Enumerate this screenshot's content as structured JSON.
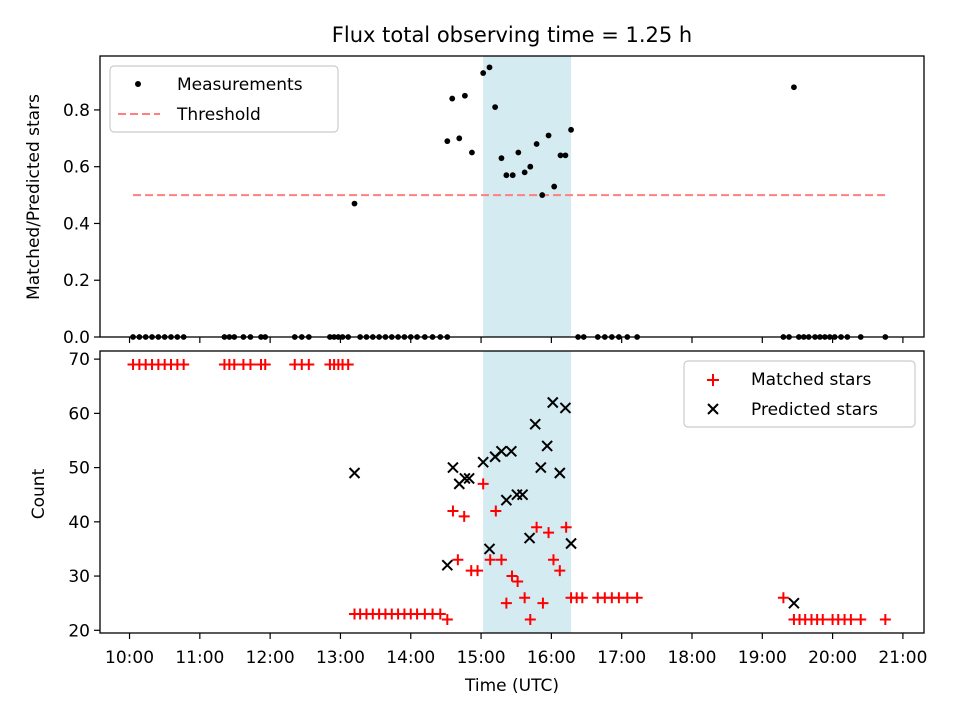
{
  "title": "Flux total observing time = 1.25 h",
  "colors": {
    "measurement": "#000000",
    "threshold": "#ff7f7f",
    "matched": "#ff0000",
    "predicted": "#000000",
    "highlight": "#add8e6"
  },
  "chart_data": [
    {
      "type": "scatter",
      "panel": "top",
      "title": "Flux total observing time = 1.25 h",
      "xlabel": "",
      "ylabel": "Matched/Predicted stars",
      "xlim": [
        9.58,
        21.3
      ],
      "ylim": [
        0.0,
        0.99
      ],
      "yticks": [
        0.0,
        0.2,
        0.4,
        0.6,
        0.8
      ],
      "ytick_labels": [
        "0.0",
        "0.2",
        "0.4",
        "0.6",
        "0.8"
      ],
      "x_unit": "hour (UTC)",
      "highlight_span": [
        15.03,
        16.28
      ],
      "legend": {
        "placement": "upper-left",
        "entries": [
          "Measurements",
          "Threshold"
        ]
      },
      "series": [
        {
          "name": "Measurements",
          "marker": "dot",
          "points": [
            [
              10.05,
              0
            ],
            [
              10.14,
              0
            ],
            [
              10.23,
              0
            ],
            [
              10.32,
              0
            ],
            [
              10.41,
              0
            ],
            [
              10.5,
              0
            ],
            [
              10.59,
              0
            ],
            [
              10.68,
              0
            ],
            [
              10.77,
              0
            ],
            [
              11.35,
              0
            ],
            [
              11.42,
              0
            ],
            [
              11.49,
              0
            ],
            [
              11.62,
              0
            ],
            [
              11.72,
              0
            ],
            [
              11.87,
              0
            ],
            [
              11.93,
              0
            ],
            [
              12.35,
              0
            ],
            [
              12.45,
              0
            ],
            [
              12.55,
              0
            ],
            [
              12.85,
              0
            ],
            [
              12.91,
              0
            ],
            [
              12.97,
              0
            ],
            [
              13.03,
              0
            ],
            [
              13.11,
              0
            ],
            [
              13.2,
              0.47
            ],
            [
              13.28,
              0
            ],
            [
              13.37,
              0
            ],
            [
              13.46,
              0
            ],
            [
              13.55,
              0
            ],
            [
              13.64,
              0
            ],
            [
              13.73,
              0
            ],
            [
              13.82,
              0
            ],
            [
              13.91,
              0
            ],
            [
              14.0,
              0
            ],
            [
              14.09,
              0
            ],
            [
              14.2,
              0
            ],
            [
              14.31,
              0
            ],
            [
              14.42,
              0
            ],
            [
              14.52,
              0
            ],
            [
              14.52,
              0.69
            ],
            [
              14.59,
              0.84
            ],
            [
              14.69,
              0.7
            ],
            [
              14.77,
              0.85
            ],
            [
              14.87,
              0.65
            ],
            [
              15.03,
              0.93
            ],
            [
              15.12,
              0.95
            ],
            [
              15.2,
              0.81
            ],
            [
              15.29,
              0.63
            ],
            [
              15.36,
              0.57
            ],
            [
              15.45,
              0.57
            ],
            [
              15.53,
              0.65
            ],
            [
              15.62,
              0.58
            ],
            [
              15.7,
              0.6
            ],
            [
              15.79,
              0.68
            ],
            [
              15.87,
              0.5
            ],
            [
              15.96,
              0.71
            ],
            [
              16.04,
              0.53
            ],
            [
              16.13,
              0.64
            ],
            [
              16.2,
              0.64
            ],
            [
              16.28,
              0.73
            ],
            [
              16.38,
              0
            ],
            [
              16.46,
              0
            ],
            [
              16.66,
              0
            ],
            [
              16.76,
              0
            ],
            [
              16.86,
              0
            ],
            [
              16.96,
              0
            ],
            [
              17.08,
              0
            ],
            [
              17.22,
              0
            ],
            [
              19.3,
              0
            ],
            [
              19.38,
              0
            ],
            [
              19.45,
              0.88
            ],
            [
              19.52,
              0
            ],
            [
              19.59,
              0
            ],
            [
              19.66,
              0
            ],
            [
              19.75,
              0
            ],
            [
              19.82,
              0
            ],
            [
              19.89,
              0
            ],
            [
              19.96,
              0
            ],
            [
              20.03,
              0
            ],
            [
              20.12,
              0
            ],
            [
              20.21,
              0
            ],
            [
              20.4,
              0
            ],
            [
              20.75,
              0
            ]
          ]
        },
        {
          "name": "Threshold",
          "marker": "dashed-line",
          "x": [
            10.05,
            20.75
          ],
          "y": [
            0.5,
            0.5
          ]
        }
      ]
    },
    {
      "type": "scatter",
      "panel": "bottom",
      "xlabel": "Time (UTC)",
      "ylabel": "Count",
      "xlim": [
        9.58,
        21.3
      ],
      "ylim": [
        19.5,
        71.5
      ],
      "yticks": [
        20,
        30,
        40,
        50,
        60,
        70
      ],
      "ytick_labels": [
        "20",
        "30",
        "40",
        "50",
        "60",
        "70"
      ],
      "xticks": [
        10,
        11,
        12,
        13,
        14,
        15,
        16,
        17,
        18,
        19,
        20,
        21
      ],
      "xtick_labels": [
        "10:00",
        "11:00",
        "12:00",
        "13:00",
        "14:00",
        "15:00",
        "16:00",
        "17:00",
        "18:00",
        "19:00",
        "20:00",
        "21:00"
      ],
      "highlight_span": [
        15.03,
        16.28
      ],
      "legend": {
        "placement": "upper-right",
        "entries": [
          "Matched stars",
          "Predicted stars"
        ]
      },
      "series": [
        {
          "name": "Matched stars",
          "marker": "plus",
          "points": [
            [
              10.05,
              69
            ],
            [
              10.14,
              69
            ],
            [
              10.23,
              69
            ],
            [
              10.32,
              69
            ],
            [
              10.41,
              69
            ],
            [
              10.5,
              69
            ],
            [
              10.59,
              69
            ],
            [
              10.68,
              69
            ],
            [
              10.77,
              69
            ],
            [
              11.35,
              69
            ],
            [
              11.42,
              69
            ],
            [
              11.49,
              69
            ],
            [
              11.62,
              69
            ],
            [
              11.72,
              69
            ],
            [
              11.87,
              69
            ],
            [
              11.93,
              69
            ],
            [
              12.35,
              69
            ],
            [
              12.45,
              69
            ],
            [
              12.55,
              69
            ],
            [
              12.85,
              69
            ],
            [
              12.91,
              69
            ],
            [
              12.97,
              69
            ],
            [
              13.03,
              69
            ],
            [
              13.11,
              69
            ],
            [
              13.2,
              23
            ],
            [
              13.28,
              23
            ],
            [
              13.37,
              23
            ],
            [
              13.46,
              23
            ],
            [
              13.55,
              23
            ],
            [
              13.64,
              23
            ],
            [
              13.73,
              23
            ],
            [
              13.82,
              23
            ],
            [
              13.91,
              23
            ],
            [
              14.0,
              23
            ],
            [
              14.09,
              23
            ],
            [
              14.2,
              23
            ],
            [
              14.31,
              23
            ],
            [
              14.42,
              23
            ],
            [
              14.52,
              22
            ],
            [
              14.6,
              42
            ],
            [
              14.67,
              33
            ],
            [
              14.76,
              41
            ],
            [
              14.86,
              31
            ],
            [
              14.95,
              31
            ],
            [
              15.03,
              47
            ],
            [
              15.13,
              33
            ],
            [
              15.21,
              42
            ],
            [
              15.29,
              33
            ],
            [
              15.36,
              25
            ],
            [
              15.44,
              30
            ],
            [
              15.52,
              29
            ],
            [
              15.62,
              26
            ],
            [
              15.7,
              22
            ],
            [
              15.79,
              39
            ],
            [
              15.88,
              25
            ],
            [
              15.96,
              38
            ],
            [
              16.03,
              33
            ],
            [
              16.12,
              31
            ],
            [
              16.21,
              39
            ],
            [
              16.28,
              26
            ],
            [
              16.36,
              26
            ],
            [
              16.44,
              26
            ],
            [
              16.66,
              26
            ],
            [
              16.76,
              26
            ],
            [
              16.86,
              26
            ],
            [
              16.96,
              26
            ],
            [
              17.08,
              26
            ],
            [
              17.22,
              26
            ],
            [
              19.3,
              26
            ],
            [
              19.45,
              22
            ],
            [
              19.53,
              22
            ],
            [
              19.61,
              22
            ],
            [
              19.7,
              22
            ],
            [
              19.78,
              22
            ],
            [
              19.86,
              22
            ],
            [
              20.0,
              22
            ],
            [
              20.08,
              22
            ],
            [
              20.17,
              22
            ],
            [
              20.26,
              22
            ],
            [
              20.4,
              22
            ],
            [
              20.75,
              22
            ]
          ]
        },
        {
          "name": "Predicted stars",
          "marker": "x",
          "points": [
            [
              13.2,
              49
            ],
            [
              14.52,
              32
            ],
            [
              14.6,
              50
            ],
            [
              14.69,
              47
            ],
            [
              14.77,
              48
            ],
            [
              14.83,
              48
            ],
            [
              15.03,
              51
            ],
            [
              15.12,
              35
            ],
            [
              15.2,
              52
            ],
            [
              15.29,
              53
            ],
            [
              15.36,
              44
            ],
            [
              15.43,
              53
            ],
            [
              15.51,
              45
            ],
            [
              15.59,
              45
            ],
            [
              15.69,
              37
            ],
            [
              15.77,
              58
            ],
            [
              15.85,
              50
            ],
            [
              15.94,
              54
            ],
            [
              16.02,
              62
            ],
            [
              16.12,
              49
            ],
            [
              16.2,
              61
            ],
            [
              16.28,
              36
            ],
            [
              19.45,
              25
            ]
          ]
        }
      ]
    }
  ]
}
